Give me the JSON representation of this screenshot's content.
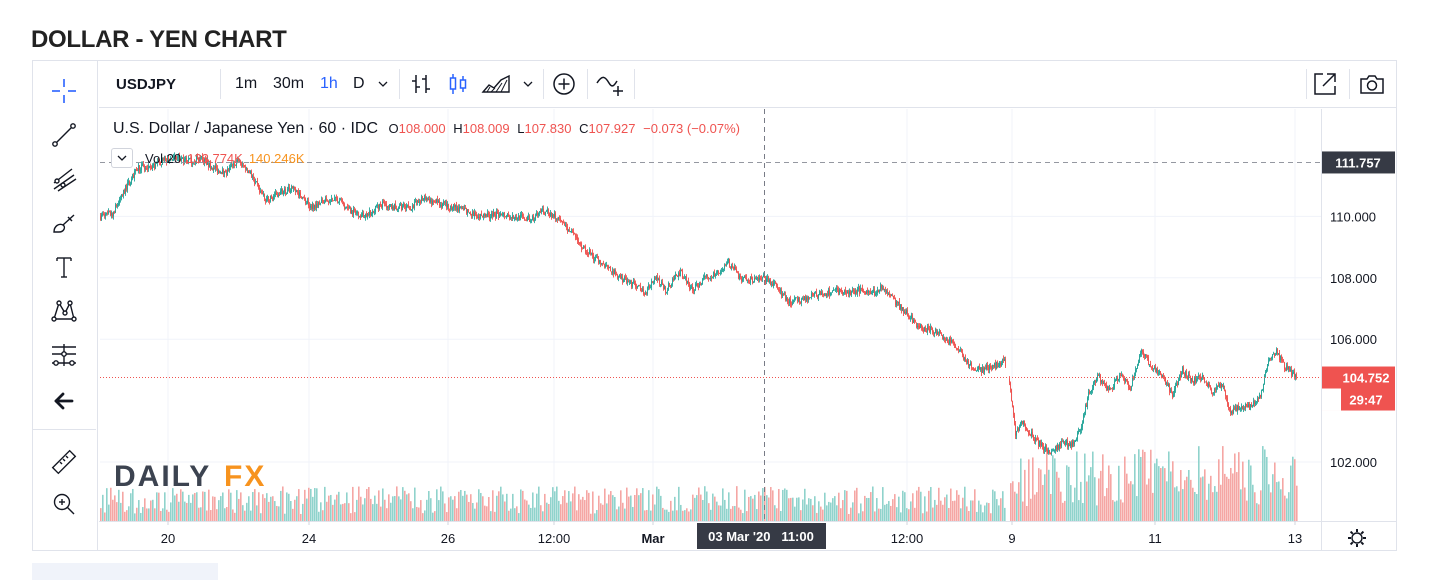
{
  "page": {
    "title": "DOLLAR - YEN CHART"
  },
  "toolbar": {
    "symbol": "USDJPY",
    "intervals": [
      "1m",
      "30m",
      "1h",
      "D"
    ],
    "active_interval": "1h",
    "icons": [
      "bar-style-icon",
      "candles-icon",
      "area-icon",
      "chevron-down-icon",
      "add-compare-icon",
      "indicators-icon",
      "fullscreen-icon",
      "camera-icon"
    ]
  },
  "left_toolbar": {
    "icons": [
      "crosshair-icon",
      "trend-line-icon",
      "pitchfork-icon",
      "brush-icon",
      "text-icon",
      "pattern-icon",
      "prediction-icon",
      "back-arrow-icon",
      "ruler-icon",
      "zoom-in-icon"
    ]
  },
  "legend": {
    "symbol_name": "U.S. Dollar / Japanese Yen · 60 · IDC",
    "o_label": "O",
    "o_value": "108.000",
    "h_label": "H",
    "h_value": "108.009",
    "l_label": "L",
    "l_value": "107.830",
    "c_label": "C",
    "c_value": "107.927",
    "change": "−0.073 (−0.07%)",
    "vol_label": "Vol 20",
    "vol_value1": "133.774K",
    "vol_value2": "140.246K"
  },
  "watermark": {
    "part1": "DAILY",
    "part2": "FX"
  },
  "colors": {
    "up": "#26a69a",
    "down": "#ef5350",
    "axis_text": "#131722",
    "price_tag": "#ef5350",
    "crosshair_tag": "#363a45",
    "brand_orange": "#f7931e",
    "brand_dark": "#3c4350"
  },
  "chart_data": {
    "type": "candlestick",
    "symbol": "USDJPY",
    "interval": "60",
    "x_ticks": [
      "20",
      "24",
      "26",
      "12:00",
      "Mar",
      "12:00",
      "9",
      "11",
      "13"
    ],
    "y_ticks": [
      "110.000",
      "108.000",
      "106.000",
      "102.000"
    ],
    "ylim": [
      100.1,
      113.0
    ],
    "crosshair": {
      "label": "03 Mar '20   11:00",
      "price": "111.757",
      "price_value": 111.757
    },
    "last_price": {
      "label": "104.752",
      "value": 104.752,
      "countdown": "29:47"
    },
    "close_path_anchors": [
      [
        0,
        110.0
      ],
      [
        12,
        110.1
      ],
      [
        25,
        110.9
      ],
      [
        38,
        111.6
      ],
      [
        50,
        111.6
      ],
      [
        62,
        111.8
      ],
      [
        75,
        111.9
      ],
      [
        88,
        111.8
      ],
      [
        100,
        111.9
      ],
      [
        112,
        111.6
      ],
      [
        125,
        111.4
      ],
      [
        138,
        111.8
      ],
      [
        150,
        111.4
      ],
      [
        165,
        110.5
      ],
      [
        180,
        110.8
      ],
      [
        195,
        110.9
      ],
      [
        210,
        110.3
      ],
      [
        222,
        110.5
      ],
      [
        235,
        110.6
      ],
      [
        250,
        110.2
      ],
      [
        265,
        110.0
      ],
      [
        280,
        110.4
      ],
      [
        295,
        110.3
      ],
      [
        310,
        110.3
      ],
      [
        325,
        110.6
      ],
      [
        340,
        110.4
      ],
      [
        355,
        110.3
      ],
      [
        370,
        110.1
      ],
      [
        385,
        110.0
      ],
      [
        400,
        110.1
      ],
      [
        415,
        110.0
      ],
      [
        430,
        109.9
      ],
      [
        445,
        110.2
      ],
      [
        458,
        109.9
      ],
      [
        470,
        109.5
      ],
      [
        482,
        109.0
      ],
      [
        495,
        108.6
      ],
      [
        508,
        108.3
      ],
      [
        520,
        108.0
      ],
      [
        532,
        107.8
      ],
      [
        545,
        107.5
      ],
      [
        555,
        108.0
      ],
      [
        565,
        107.6
      ],
      [
        580,
        108.2
      ],
      [
        592,
        107.6
      ],
      [
        605,
        108.0
      ],
      [
        615,
        108.1
      ],
      [
        628,
        108.5
      ],
      [
        640,
        108.0
      ],
      [
        652,
        107.9
      ],
      [
        664,
        108.0
      ],
      [
        676,
        107.7
      ],
      [
        688,
        107.2
      ],
      [
        700,
        107.3
      ],
      [
        712,
        107.4
      ],
      [
        724,
        107.5
      ],
      [
        736,
        107.6
      ],
      [
        748,
        107.5
      ],
      [
        760,
        107.6
      ],
      [
        772,
        107.5
      ],
      [
        782,
        107.7
      ],
      [
        792,
        107.3
      ],
      [
        805,
        106.9
      ],
      [
        818,
        106.4
      ],
      [
        830,
        106.3
      ],
      [
        842,
        106.1
      ],
      [
        855,
        105.8
      ],
      [
        868,
        105.2
      ],
      [
        880,
        105.0
      ],
      [
        892,
        105.1
      ],
      [
        904,
        105.3
      ],
      [
        910,
        104.4
      ],
      [
        915,
        102.9
      ],
      [
        922,
        103.3
      ],
      [
        935,
        102.7
      ],
      [
        950,
        102.3
      ],
      [
        962,
        102.6
      ],
      [
        972,
        102.6
      ],
      [
        980,
        103.0
      ],
      [
        988,
        104.2
      ],
      [
        998,
        104.8
      ],
      [
        1008,
        104.3
      ],
      [
        1020,
        104.8
      ],
      [
        1030,
        104.4
      ],
      [
        1040,
        105.6
      ],
      [
        1050,
        105.2
      ],
      [
        1062,
        104.8
      ],
      [
        1072,
        104.2
      ],
      [
        1082,
        105.0
      ],
      [
        1092,
        104.6
      ],
      [
        1102,
        104.8
      ],
      [
        1112,
        104.3
      ],
      [
        1122,
        104.5
      ],
      [
        1130,
        103.6
      ],
      [
        1140,
        103.8
      ],
      [
        1150,
        103.8
      ],
      [
        1160,
        104.1
      ],
      [
        1168,
        105.4
      ],
      [
        1176,
        105.6
      ],
      [
        1184,
        105.1
      ],
      [
        1192,
        104.9
      ],
      [
        1196,
        104.75
      ]
    ],
    "volume_range": [
      0,
      140.246
    ]
  }
}
